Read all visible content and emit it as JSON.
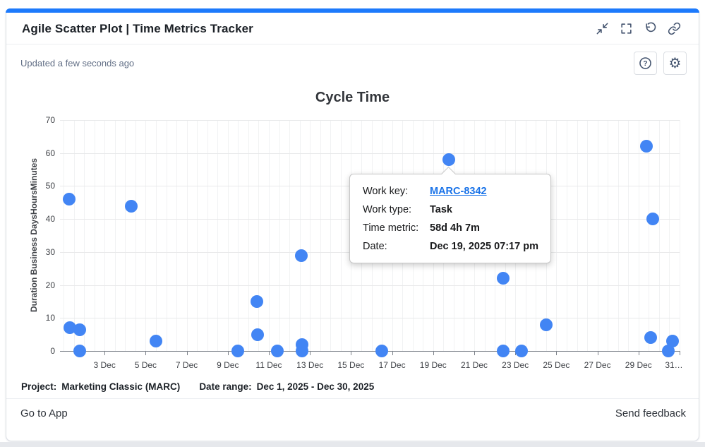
{
  "colors": {
    "accent": "#1d7afc",
    "point": "#4285f4",
    "link": "#1a73e8"
  },
  "header": {
    "title": "Agile Scatter Plot | Time Metrics Tracker",
    "updated": "Updated a few seconds ago"
  },
  "icons": {
    "help_glyph": "?",
    "gear_glyph": "⚙"
  },
  "chart_data": {
    "type": "scatter",
    "title": "Cycle Time",
    "xlabel": "",
    "ylabel": "Duration Business DaysHoursMinutes",
    "ylim": [
      0,
      70
    ],
    "y_ticks": [
      0,
      10,
      20,
      30,
      40,
      50,
      60,
      70
    ],
    "xlim_days": [
      0.83,
      31
    ],
    "x_ticks": [
      {
        "day": 3,
        "label": "3 Dec"
      },
      {
        "day": 5,
        "label": "5 Dec"
      },
      {
        "day": 7,
        "label": "7 Dec"
      },
      {
        "day": 9,
        "label": "9 Dec"
      },
      {
        "day": 11,
        "label": "11 Dec"
      },
      {
        "day": 13,
        "label": "13 Dec"
      },
      {
        "day": 15,
        "label": "15 Dec"
      },
      {
        "day": 17,
        "label": "17 Dec"
      },
      {
        "day": 19,
        "label": "19 Dec"
      },
      {
        "day": 21,
        "label": "21 Dec"
      },
      {
        "day": 23,
        "label": "23 Dec"
      },
      {
        "day": 25,
        "label": "25 Dec"
      },
      {
        "day": 27,
        "label": "27 Dec"
      },
      {
        "day": 29,
        "label": "29 Dec"
      },
      {
        "day": 31,
        "label": "31…"
      }
    ],
    "grid": true,
    "legend": "none",
    "point_color": "#4285f4",
    "points": [
      {
        "day": 1.27,
        "value": 46
      },
      {
        "day": 1.31,
        "value": 7
      },
      {
        "day": 1.79,
        "value": 6.5
      },
      {
        "day": 1.79,
        "value": 0
      },
      {
        "day": 4.3,
        "value": 44
      },
      {
        "day": 5.5,
        "value": 3
      },
      {
        "day": 9.5,
        "value": 0
      },
      {
        "day": 10.4,
        "value": 15
      },
      {
        "day": 10.45,
        "value": 5
      },
      {
        "day": 11.4,
        "value": 0
      },
      {
        "day": 12.58,
        "value": 29
      },
      {
        "day": 12.6,
        "value": 2
      },
      {
        "day": 12.6,
        "value": 0
      },
      {
        "day": 16.5,
        "value": 0
      },
      {
        "day": 19.76,
        "value": 58,
        "key": "MARC-8342"
      },
      {
        "day": 22.4,
        "value": 22
      },
      {
        "day": 22.4,
        "value": 0
      },
      {
        "day": 23.3,
        "value": 0
      },
      {
        "day": 24.5,
        "value": 8
      },
      {
        "day": 29.4,
        "value": 62
      },
      {
        "day": 29.7,
        "value": 40
      },
      {
        "day": 29.6,
        "value": 4
      },
      {
        "day": 30.65,
        "value": 3
      },
      {
        "day": 30.45,
        "value": 0
      }
    ]
  },
  "tooltip": {
    "rows": [
      {
        "label": "Work key:",
        "value": "MARC-8342"
      },
      {
        "label": "Work type:",
        "value": "Task"
      },
      {
        "label": "Time metric:",
        "value": "58d 4h 7m"
      },
      {
        "label": "Date:",
        "value": "Dec 19, 2025 07:17 pm"
      }
    ]
  },
  "meta": {
    "project_label": "Project:",
    "project_value": "Marketing Classic (MARC)",
    "range_label": "Date range:",
    "range_value": "Dec 1, 2025 - Dec 30, 2025"
  },
  "footer": {
    "go_to_app": "Go to App",
    "send_feedback": "Send feedback"
  }
}
